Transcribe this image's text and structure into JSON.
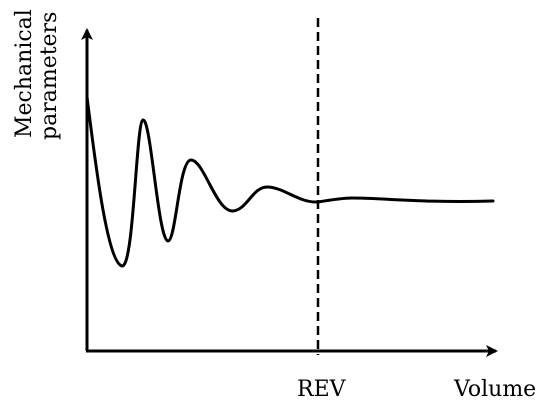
{
  "diagram": {
    "y_axis_label_line1": "Mechanical",
    "y_axis_label_line2": "parameters",
    "x_axis_label": "Volume",
    "marker_label": "REV",
    "colors": {
      "line": "#000000",
      "background": "#ffffff"
    }
  }
}
